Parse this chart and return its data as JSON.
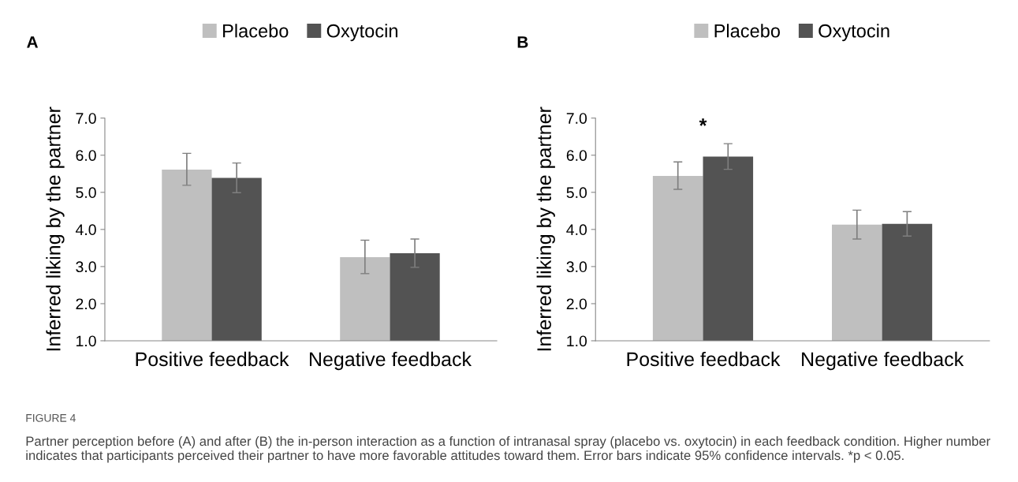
{
  "chart_data": [
    {
      "type": "bar",
      "title": "A",
      "ylabel": "Inferred liking by the partner",
      "categories": [
        "Positive feedback",
        "Negative feedback"
      ],
      "series": [
        {
          "name": "Placebo",
          "color": "#bfbfbf",
          "values": [
            5.61,
            3.25
          ],
          "errors": [
            [
              5.19,
              6.05
            ],
            [
              2.81,
              3.71
            ]
          ]
        },
        {
          "name": "Oxytocin",
          "color": "#535353",
          "values": [
            5.39,
            3.36
          ],
          "errors": [
            [
              4.99,
              5.79
            ],
            [
              2.98,
              3.74
            ]
          ]
        }
      ],
      "ylim": [
        1.0,
        7.0
      ],
      "yticks": [
        {
          "value": 1,
          "label": "1.0"
        },
        {
          "value": 2,
          "label": "2.0"
        },
        {
          "value": 3,
          "label": "3.0"
        },
        {
          "value": 4,
          "label": "4.0"
        },
        {
          "value": 5,
          "label": "5.0"
        },
        {
          "value": 6,
          "label": "6.0"
        },
        {
          "value": 7,
          "label": "7.0"
        }
      ],
      "legend": "top",
      "grid": false,
      "annotations": [
        "FIGURE 4",
        "Partner perception before (A) and after (B) the in-person interaction as a function of intranasal spray (placebo vs. oxytocin) in each feedback condition. Higher number indicates that participants perceived their partner to have more favorable attitudes toward them. Error bars indicate 95% confidence intervals. *p < 0.05."
      ]
    },
    {
      "type": "bar",
      "title": "B",
      "ylabel": "Inferred liking by the partner",
      "categories": [
        "Positive feedback",
        "Negative feedback"
      ],
      "series": [
        {
          "name": "Placebo",
          "color": "#bfbfbf",
          "values": [
            5.44,
            4.13
          ],
          "errors": [
            [
              5.08,
              5.82
            ],
            [
              3.74,
              4.52
            ]
          ]
        },
        {
          "name": "Oxytocin",
          "color": "#535353",
          "values": [
            5.96,
            4.15
          ],
          "errors": [
            [
              5.62,
              6.31
            ],
            [
              3.82,
              4.48
            ]
          ]
        }
      ],
      "ylim": [
        1.0,
        7.0
      ],
      "yticks": [
        {
          "value": 1,
          "label": "1.0"
        },
        {
          "value": 2,
          "label": "2.0"
        },
        {
          "value": 3,
          "label": "3.0"
        },
        {
          "value": 4,
          "label": "4.0"
        },
        {
          "value": 5,
          "label": "5.0"
        },
        {
          "value": 6,
          "label": "6.0"
        },
        {
          "value": 7,
          "label": "7.0"
        }
      ],
      "legend": "top",
      "grid": false,
      "annotations": [
        "*"
      ]
    }
  ]
}
